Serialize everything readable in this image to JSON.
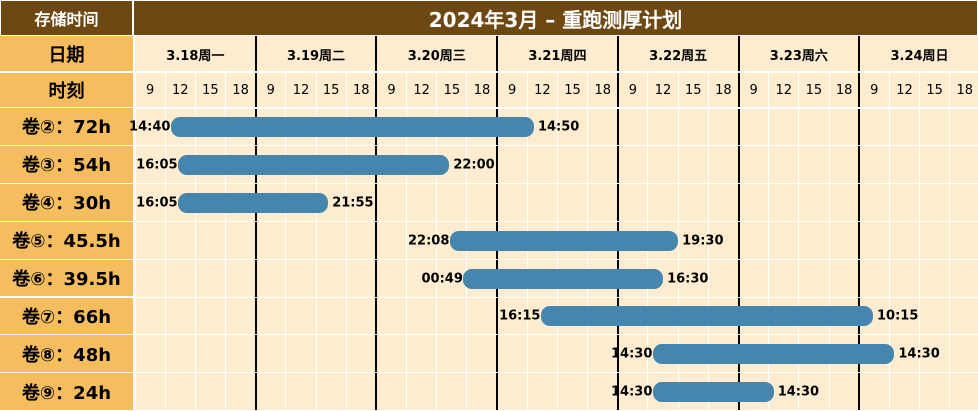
{
  "header": {
    "corner_label": "存储时间",
    "title": "2024年3月 – 重跑测厚计划",
    "date_row_label": "日期",
    "hour_row_label": "时刻"
  },
  "days": [
    "3.18周一",
    "3.19周二",
    "3.20周三",
    "3.21周四",
    "3.22周五",
    "3.23周六",
    "3.24周日"
  ],
  "hours": [
    "9",
    "12",
    "15",
    "18"
  ],
  "colors": {
    "title_bg": "#6e4812",
    "label_bg": "#f5bd5e",
    "grid_bg": "#fdecd0",
    "bar": "#4486ad",
    "day_separator": "#000000",
    "grid_line": "#ffffff"
  },
  "chart_data": {
    "type": "gantt",
    "title": "2024年3月 – 重跑测厚计划",
    "x_range": [
      "3.18 07:30",
      "3.25 00:00"
    ],
    "tasks": [
      {
        "label": "卷②：72h",
        "start": "3.18 14:40",
        "end": "3.21 14:50",
        "start_label": "14:40",
        "end_label": "14:50"
      },
      {
        "label": "卷③：54h",
        "start": "3.18 16:05",
        "end": "3.20 22:00",
        "start_label": "16:05",
        "end_label": "22:00"
      },
      {
        "label": "卷④：30h",
        "start": "3.18 16:05",
        "end": "3.19 21:55",
        "start_label": "16:05",
        "end_label": "21:55"
      },
      {
        "label": "卷⑤：45.5h",
        "start": "3.20 22:08",
        "end": "3.22 19:30",
        "start_label": "22:08",
        "end_label": "19:30"
      },
      {
        "label": "卷⑥：39.5h",
        "start": "3.21 00:49",
        "end": "3.22 16:30",
        "start_label": "00:49",
        "end_label": "16:30"
      },
      {
        "label": "卷⑦：66h",
        "start": "3.21 16:15",
        "end": "3.24 10:15",
        "start_label": "16:15",
        "end_label": "10:15"
      },
      {
        "label": "卷⑧：48h",
        "start": "3.22 14:30",
        "end": "3.24 14:30",
        "start_label": "14:30",
        "end_label": "14:30"
      },
      {
        "label": "卷⑨：24h",
        "start": "3.22 14:30",
        "end": "3.23 14:30",
        "start_label": "14:30",
        "end_label": "14:30"
      }
    ]
  }
}
